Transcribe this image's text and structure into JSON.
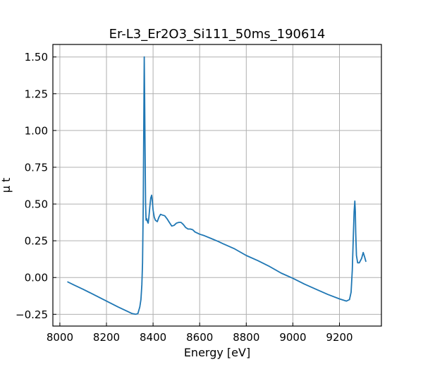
{
  "chart_data": {
    "type": "line",
    "title": "Er-L3_Er2O3_Si111_50ms_190614",
    "xlabel": "Energy [eV]",
    "ylabel": "μ t",
    "xlim": [
      7970,
      9380
    ],
    "ylim": [
      -0.33,
      1.585
    ],
    "grid": true,
    "x_ticks": [
      8000,
      8200,
      8400,
      8600,
      8800,
      9000,
      9200
    ],
    "x_tick_labels": [
      "8000",
      "8200",
      "8400",
      "8600",
      "8800",
      "9000",
      "9200"
    ],
    "y_ticks": [
      -0.25,
      0,
      0.25,
      0.5,
      0.75,
      1.0,
      1.25,
      1.5
    ],
    "y_tick_labels": [
      "−0.25",
      "0.00",
      "0.25",
      "0.50",
      "0.75",
      "1.00",
      "1.25",
      "1.50"
    ],
    "series": [
      {
        "color": "#1f77b4",
        "x": [
          8034,
          8060,
          8100,
          8150,
          8200,
          8250,
          8290,
          8310,
          8325,
          8335,
          8343,
          8348,
          8352,
          8355,
          8358,
          8360,
          8362,
          8364,
          8366,
          8368,
          8370,
          8373,
          8376,
          8379,
          8382,
          8386,
          8390,
          8394,
          8397,
          8400,
          8405,
          8410,
          8418,
          8425,
          8432,
          8440,
          8450,
          8460,
          8470,
          8480,
          8490,
          8500,
          8510,
          8520,
          8530,
          8540,
          8550,
          8560,
          8570,
          8580,
          8600,
          8620,
          8650,
          8680,
          8700,
          8750,
          8800,
          8850,
          8900,
          8950,
          9000,
          9050,
          9100,
          9150,
          9200,
          9230,
          9243,
          9250,
          9255,
          9260,
          9263,
          9266,
          9268,
          9270,
          9273,
          9278,
          9285,
          9295,
          9302,
          9308,
          9313
        ],
        "y": [
          -0.03,
          -0.05,
          -0.08,
          -0.12,
          -0.16,
          -0.2,
          -0.23,
          -0.245,
          -0.25,
          -0.245,
          -0.2,
          -0.15,
          -0.05,
          0.1,
          0.5,
          1.0,
          1.5,
          1.2,
          0.8,
          0.5,
          0.39,
          0.4,
          0.38,
          0.37,
          0.41,
          0.48,
          0.54,
          0.56,
          0.52,
          0.46,
          0.41,
          0.39,
          0.38,
          0.41,
          0.43,
          0.425,
          0.42,
          0.4,
          0.375,
          0.35,
          0.355,
          0.37,
          0.375,
          0.375,
          0.36,
          0.34,
          0.33,
          0.33,
          0.325,
          0.31,
          0.295,
          0.285,
          0.265,
          0.245,
          0.23,
          0.195,
          0.15,
          0.115,
          0.075,
          0.03,
          -0.005,
          -0.045,
          -0.08,
          -0.115,
          -0.145,
          -0.16,
          -0.15,
          -0.1,
          0.05,
          0.3,
          0.45,
          0.52,
          0.45,
          0.3,
          0.15,
          0.1,
          0.1,
          0.13,
          0.17,
          0.14,
          0.11
        ]
      }
    ]
  }
}
